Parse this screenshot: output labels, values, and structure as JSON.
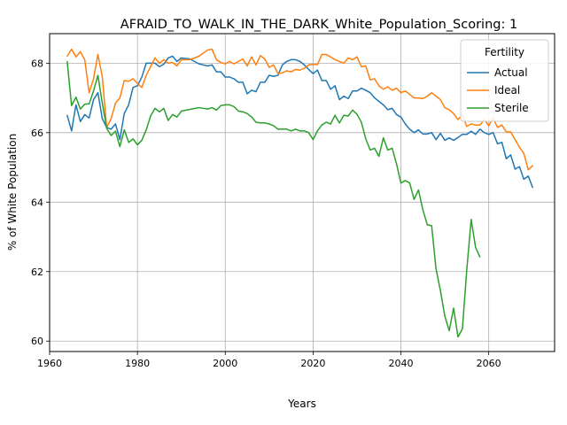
{
  "chart_data": {
    "type": "line",
    "title": "AFRAID_TO_WALK_IN_THE_DARK_White_Population_Scoring: 1",
    "xlabel": "Years",
    "ylabel": "% of White Population",
    "xlim": [
      1960,
      2075
    ],
    "ylim": [
      59.7,
      68.85
    ],
    "xticks": [
      1960,
      1980,
      2000,
      2020,
      2040,
      2060
    ],
    "yticks": [
      60,
      62,
      64,
      66,
      68
    ],
    "grid": true,
    "legend": {
      "title": "Fertility",
      "placement": "top-right"
    },
    "series": [
      {
        "name": "Actual",
        "color": "#1f77b4",
        "x": [
          1964,
          1965,
          1966,
          1967,
          1968,
          1969,
          1970,
          1971,
          1972,
          1973,
          1974,
          1975,
          1976,
          1977,
          1978,
          1979,
          1980,
          1981,
          1982,
          1983,
          1984,
          1985,
          1986,
          1987,
          1988,
          1989,
          1990,
          1992,
          1994,
          1996,
          1997,
          1998,
          1999,
          2000,
          2001,
          2002,
          2003,
          2004,
          2005,
          2006,
          2007,
          2008,
          2009,
          2010,
          2011,
          2012,
          2013,
          2014,
          2015,
          2016,
          2017,
          2018,
          2019,
          2020,
          2021,
          2022,
          2023,
          2024,
          2025,
          2026,
          2027,
          2028,
          2029,
          2030,
          2031,
          2032,
          2033,
          2034,
          2035,
          2036,
          2037,
          2038,
          2039,
          2040,
          2041,
          2042,
          2043,
          2044,
          2045,
          2046,
          2047,
          2048,
          2049,
          2050,
          2051,
          2052,
          2053,
          2054,
          2055,
          2056,
          2057,
          2058,
          2059,
          2060,
          2061,
          2062,
          2063,
          2064,
          2065,
          2066,
          2067,
          2068,
          2069,
          2070
        ],
        "values": [
          66.5,
          66.05,
          66.8,
          66.32,
          66.52,
          66.42,
          66.95,
          67.15,
          66.4,
          66.15,
          66.1,
          66.25,
          65.8,
          66.55,
          66.8,
          67.3,
          67.35,
          67.6,
          68.0,
          68.0,
          68.0,
          67.9,
          67.97,
          68.15,
          68.2,
          68.05,
          68.15,
          68.12,
          67.98,
          67.92,
          67.95,
          67.75,
          67.75,
          67.6,
          67.6,
          67.55,
          67.45,
          67.45,
          67.12,
          67.22,
          67.18,
          67.45,
          67.45,
          67.65,
          67.62,
          67.65,
          67.95,
          68.05,
          68.1,
          68.1,
          68.05,
          67.95,
          67.82,
          67.7,
          67.8,
          67.5,
          67.5,
          67.25,
          67.35,
          66.95,
          67.05,
          66.98,
          67.2,
          67.2,
          67.28,
          67.22,
          67.15,
          67.0,
          66.9,
          66.8,
          66.66,
          66.7,
          66.52,
          66.45,
          66.25,
          66.1,
          66.0,
          66.08,
          65.96,
          65.96,
          66.0,
          65.8,
          65.98,
          65.78,
          65.85,
          65.78,
          65.86,
          65.95,
          65.95,
          66.04,
          65.95,
          66.1,
          66.0,
          65.95,
          66.0,
          65.68,
          65.72,
          65.25,
          65.36,
          64.95,
          65.02,
          64.66,
          64.75,
          64.42
        ]
      },
      {
        "name": "Ideal",
        "color": "#ff7f0e",
        "x": [
          1964,
          1965,
          1966,
          1967,
          1968,
          1969,
          1970,
          1971,
          1972,
          1973,
          1974,
          1975,
          1976,
          1977,
          1978,
          1979,
          1980,
          1981,
          1982,
          1983,
          1984,
          1985,
          1986,
          1987,
          1988,
          1989,
          1990,
          1992,
          1994,
          1996,
          1997,
          1998,
          1999,
          2000,
          2001,
          2002,
          2003,
          2004,
          2005,
          2006,
          2007,
          2008,
          2009,
          2010,
          2011,
          2012,
          2013,
          2014,
          2015,
          2016,
          2017,
          2018,
          2019,
          2020,
          2021,
          2022,
          2023,
          2024,
          2025,
          2026,
          2027,
          2028,
          2029,
          2030,
          2031,
          2032,
          2033,
          2034,
          2035,
          2036,
          2037,
          2038,
          2039,
          2040,
          2041,
          2042,
          2043,
          2044,
          2045,
          2046,
          2047,
          2048,
          2049,
          2050,
          2051,
          2052,
          2053,
          2054,
          2055,
          2056,
          2057,
          2058,
          2059,
          2060,
          2061,
          2062,
          2063,
          2064,
          2065,
          2066,
          2067,
          2068,
          2069,
          2070
        ],
        "values": [
          68.2,
          68.4,
          68.18,
          68.33,
          68.1,
          67.15,
          67.55,
          68.25,
          67.6,
          66.15,
          66.4,
          66.85,
          67.0,
          67.5,
          67.48,
          67.55,
          67.42,
          67.3,
          67.65,
          67.9,
          68.15,
          68.0,
          68.1,
          68.0,
          68.02,
          67.92,
          68.1,
          68.1,
          68.2,
          68.38,
          68.4,
          68.1,
          68.02,
          67.98,
          68.05,
          67.98,
          68.05,
          68.12,
          67.92,
          68.18,
          67.95,
          68.22,
          68.12,
          67.88,
          67.95,
          67.7,
          67.72,
          67.78,
          67.75,
          67.82,
          67.8,
          67.85,
          67.95,
          67.96,
          67.96,
          68.25,
          68.25,
          68.18,
          68.1,
          68.05,
          68.0,
          68.15,
          68.1,
          68.18,
          67.9,
          67.92,
          67.52,
          67.55,
          67.35,
          67.25,
          67.32,
          67.22,
          67.28,
          67.15,
          67.2,
          67.1,
          67.0,
          67.0,
          66.98,
          67.05,
          67.15,
          67.05,
          66.95,
          66.72,
          66.66,
          66.55,
          66.38,
          66.5,
          66.18,
          66.25,
          66.22,
          66.22,
          66.38,
          66.2,
          66.42,
          66.15,
          66.22,
          66.02,
          66.02,
          65.8,
          65.58,
          65.4,
          64.93,
          65.05
        ]
      },
      {
        "name": "Sterile",
        "color": "#2ca02c",
        "x": [
          1964,
          1965,
          1966,
          1967,
          1968,
          1969,
          1970,
          1971,
          1972,
          1973,
          1974,
          1975,
          1976,
          1977,
          1978,
          1979,
          1980,
          1981,
          1982,
          1983,
          1984,
          1985,
          1986,
          1987,
          1988,
          1989,
          1990,
          1992,
          1994,
          1996,
          1997,
          1998,
          1999,
          2000,
          2001,
          2002,
          2003,
          2004,
          2005,
          2006,
          2007,
          2008,
          2009,
          2010,
          2011,
          2012,
          2013,
          2014,
          2015,
          2016,
          2017,
          2018,
          2019,
          2020,
          2021,
          2022,
          2023,
          2024,
          2025,
          2026,
          2027,
          2028,
          2029,
          2030,
          2031,
          2032,
          2033,
          2034,
          2035,
          2036,
          2037,
          2038,
          2039,
          2040,
          2041,
          2042,
          2043,
          2044,
          2045,
          2046,
          2047,
          2048,
          2049,
          2050,
          2051,
          2052,
          2053,
          2054,
          2055,
          2056,
          2057,
          2058
        ],
        "values": [
          68.05,
          66.78,
          67.02,
          66.68,
          66.82,
          66.83,
          67.2,
          67.65,
          66.85,
          66.12,
          65.92,
          66.04,
          65.6,
          66.08,
          65.72,
          65.82,
          65.65,
          65.78,
          66.08,
          66.48,
          66.7,
          66.6,
          66.7,
          66.35,
          66.52,
          66.45,
          66.62,
          66.67,
          66.72,
          66.68,
          66.72,
          66.65,
          66.78,
          66.8,
          66.8,
          66.75,
          66.62,
          66.6,
          66.55,
          66.45,
          66.3,
          66.28,
          66.28,
          66.25,
          66.2,
          66.1,
          66.1,
          66.1,
          66.05,
          66.1,
          66.05,
          66.05,
          66.0,
          65.8,
          66.05,
          66.22,
          66.3,
          66.25,
          66.5,
          66.28,
          66.5,
          66.48,
          66.65,
          66.53,
          66.3,
          65.82,
          65.5,
          65.55,
          65.32,
          65.85,
          65.5,
          65.55,
          65.1,
          64.55,
          64.62,
          64.55,
          64.08,
          64.35,
          63.78,
          63.35,
          63.32,
          62.08,
          61.45,
          60.72,
          60.3,
          60.95,
          60.12,
          60.35,
          62.05,
          63.5,
          62.7,
          62.42
        ]
      }
    ]
  }
}
